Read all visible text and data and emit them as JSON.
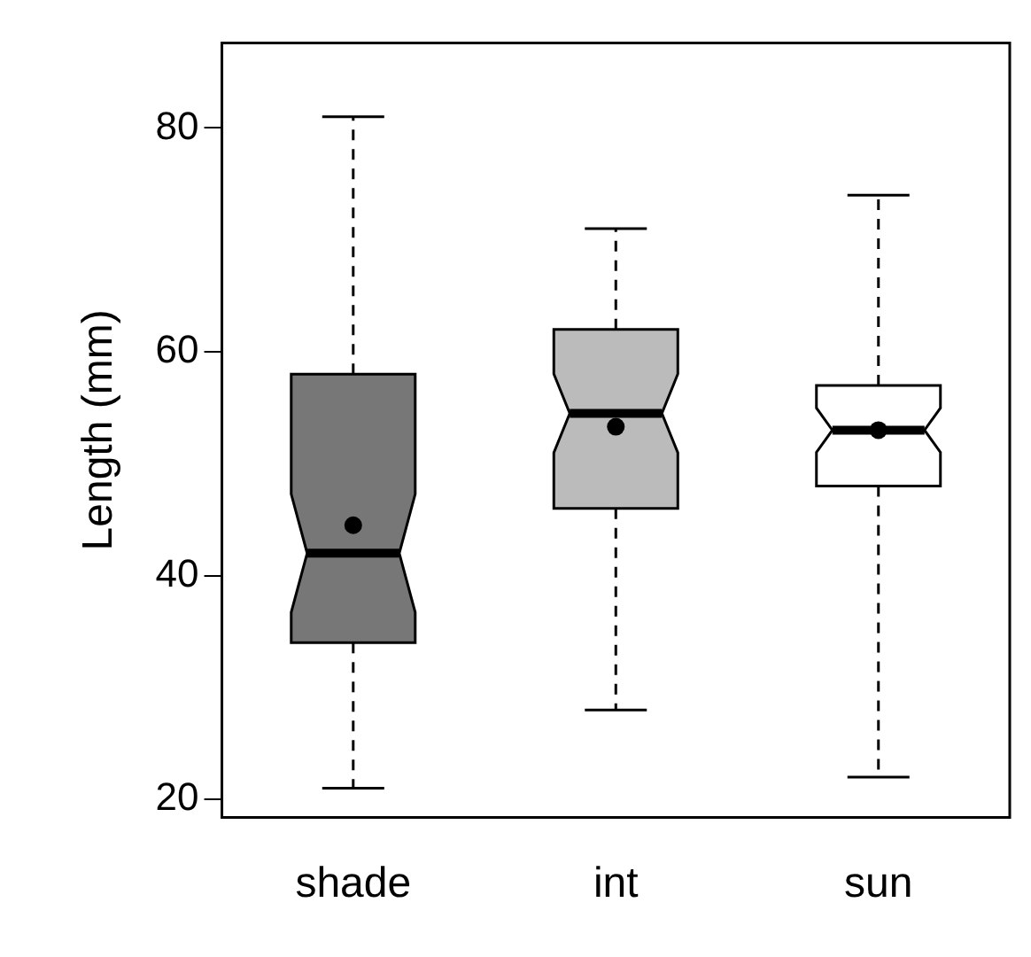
{
  "chart_data": {
    "type": "box",
    "ylabel": "Length (mm)",
    "categories": [
      "shade",
      "int",
      "sun"
    ],
    "boxes": [
      {
        "low": 21,
        "q1": 34,
        "median": 42,
        "q3": 58,
        "high": 81,
        "mean": 44.5
      },
      {
        "low": 28,
        "q1": 46,
        "median": 54.5,
        "q3": 62,
        "high": 71,
        "mean": 53.3
      },
      {
        "low": 22,
        "q1": 48,
        "median": 53,
        "q3": 57,
        "high": 74,
        "mean": 53
      }
    ],
    "colors": [
      "#777777",
      "#bbbbbb",
      "#ffffff"
    ],
    "ylim": [
      18.4,
      87.6
    ],
    "yticks": [
      20,
      40,
      60,
      80
    ],
    "grid": false,
    "legend": false
  }
}
